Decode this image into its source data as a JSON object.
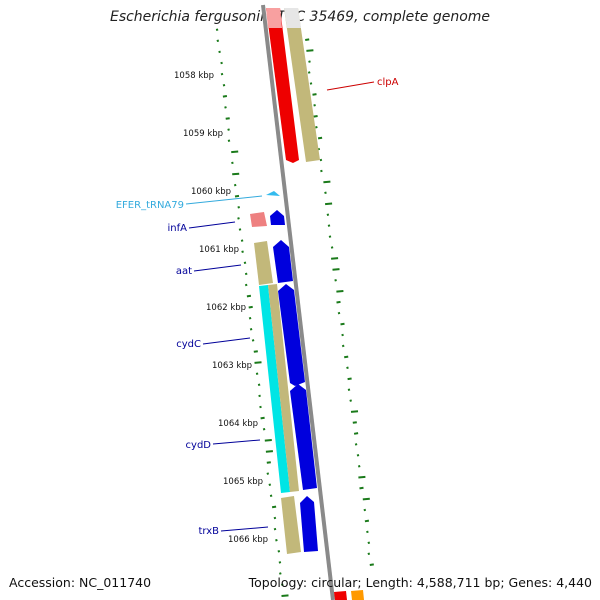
{
  "title": "Escherichia fergusonii ATCC 35469, complete genome",
  "footer": {
    "accession": "Accession: NC_011740",
    "summary": "Topology: circular; Length: 4,588,711 bp; Genes: 4,440"
  },
  "scale_labels": [
    "1058 kbp",
    "1059 kbp",
    "1060 kbp",
    "1061 kbp",
    "1062 kbp",
    "1063 kbp",
    "1064 kbp",
    "1065 kbp",
    "1066 kbp"
  ],
  "gene_labels": [
    {
      "text": "clpA",
      "color": "#cc0000"
    },
    {
      "text": "EFER_tRNA79",
      "color": "#33aadd"
    },
    {
      "text": "infA",
      "color": "#000099"
    },
    {
      "text": "aat",
      "color": "#000099"
    },
    {
      "text": "cydC",
      "color": "#000099"
    },
    {
      "text": "cydD",
      "color": "#000099"
    },
    {
      "text": "trxB",
      "color": "#000099"
    }
  ],
  "colors": {
    "backbone": "#8a8a8a",
    "cds": "#c2b87a",
    "reverse_gene": "#ee0000",
    "forward_gene": "#0000dd",
    "rna_gene": "#00e5e5",
    "trna": "#33bbee",
    "gc_dots": "#1a7a1a"
  }
}
